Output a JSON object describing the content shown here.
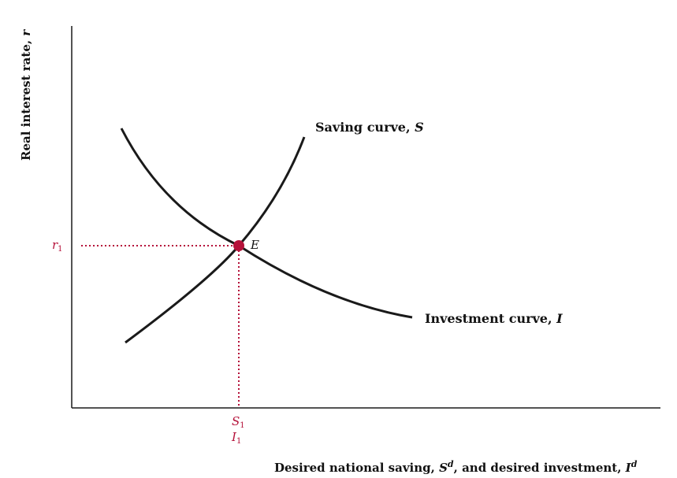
{
  "axes": {
    "y_label_main": "Real interest rate, ",
    "y_label_var": "r",
    "x_label_part1": "Desired national saving, ",
    "x_label_s": "S",
    "x_label_sup1": "d",
    "x_label_part2": ", and desired investment, ",
    "x_label_i": "I",
    "x_label_sup2": "d"
  },
  "curves": {
    "saving_label": "Saving curve, ",
    "saving_var": "S",
    "investment_label": "Investment curve, ",
    "investment_var": "I"
  },
  "equilibrium": {
    "point_label": "E",
    "r_var": "r",
    "r_sub": "1",
    "s_var": "S",
    "s_sub": "1",
    "i_var": "I",
    "i_sub": "1"
  },
  "colors": {
    "curve": "#1a1a1a",
    "axis": "#1a1a1a",
    "accent": "#b5123a"
  }
}
